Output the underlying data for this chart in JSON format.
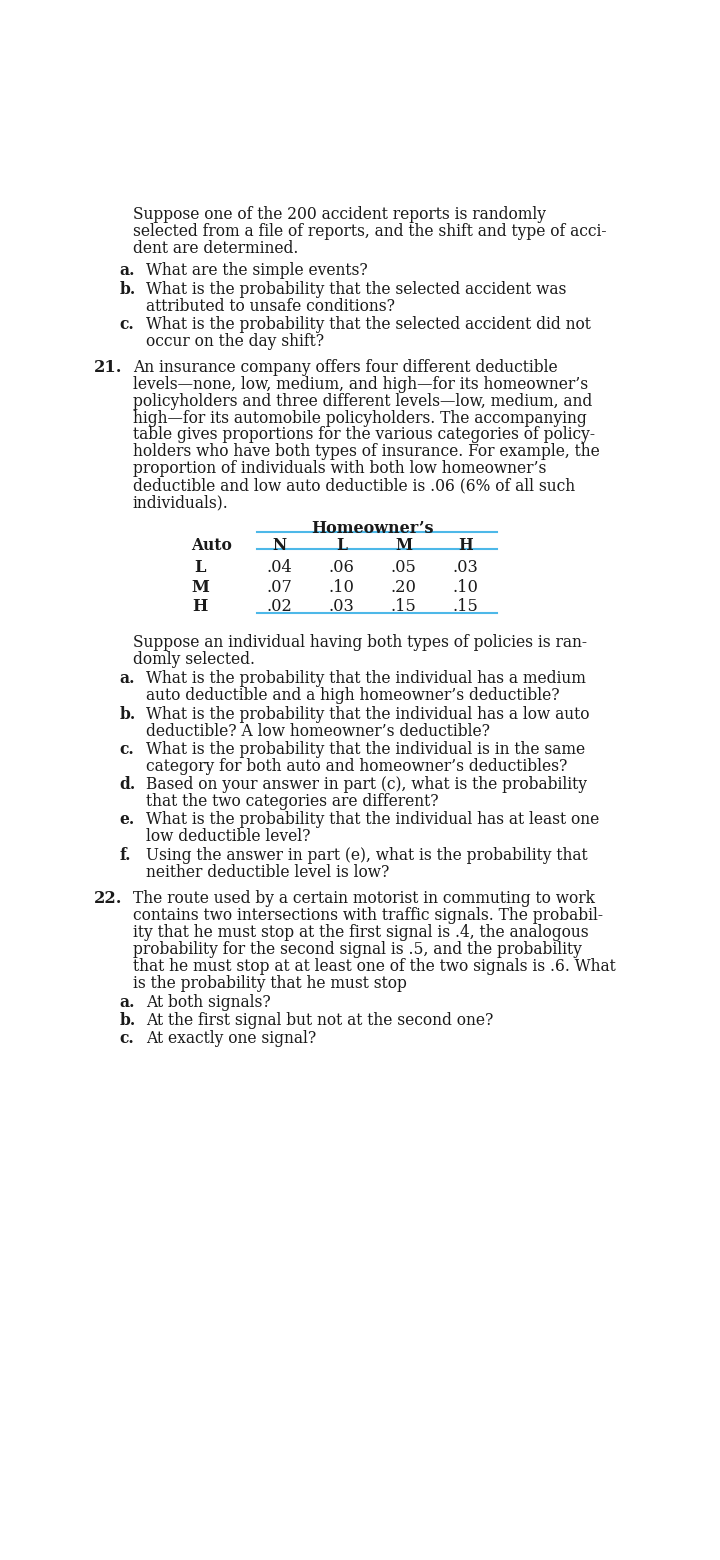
{
  "bg_color": "#ffffff",
  "text_color": "#1a1a1a",
  "line_color": "#4db8e8",
  "font_size_body": 11.2,
  "prev_para_lines": [
    "Suppose one of the 200 accident reports is randomly",
    "selected from a file of reports, and the shift and type of acci-",
    "dent are determined."
  ],
  "prev_items": [
    [
      "a.",
      "What are the simple events?"
    ],
    [
      "b.",
      "What is the probability that the selected accident was\n      attributed to unsafe conditions?"
    ],
    [
      "c.",
      "What is the probability that the selected accident did not\n      occur on the day shift?"
    ]
  ],
  "num21": "21.",
  "intro21_lines": [
    "An insurance company offers four different deductible",
    "levels—none, low, medium, and high—for its homeowner’s",
    "policyholders and three different levels—low, medium, and",
    "high—for its automobile policyholders. The accompanying",
    "table gives proportions for the various categories of policy-",
    "holders who have both types of insurance. For example, the",
    "proportion of individuals with both low homeowner’s",
    "deductible and low auto deductible is .06 (6% of all such",
    "individuals)."
  ],
  "table_header": "Homeowner’s",
  "table_col_headers": [
    "Auto",
    "N",
    "L",
    "M",
    "H"
  ],
  "table_rows": [
    [
      "L",
      ".04",
      ".06",
      ".05",
      ".03"
    ],
    [
      "M",
      ".07",
      ".10",
      ".20",
      ".10"
    ],
    [
      "H",
      ".02",
      ".03",
      ".15",
      ".15"
    ]
  ],
  "bridge21_lines": [
    "Suppose an individual having both types of policies is ran-",
    "domly selected."
  ],
  "items21": [
    [
      "a.",
      "What is the probability that the individual has a medium\n      auto deductible and a high homeowner’s deductible?"
    ],
    [
      "b.",
      "What is the probability that the individual has a low auto\n      deductible? A low homeowner’s deductible?"
    ],
    [
      "c.",
      "What is the probability that the individual is in the same\n      category for both auto and homeowner’s deductibles?"
    ],
    [
      "d.",
      "Based on your answer in part (c), what is the probability\n      that the two categories are different?"
    ],
    [
      "e.",
      "What is the probability that the individual has at least one\n      low deductible level?"
    ],
    [
      "f.",
      "Using the answer in part (e), what is the probability that\n      neither deductible level is low?"
    ]
  ],
  "num22": "22.",
  "intro22_lines": [
    "The route used by a certain motorist in commuting to work",
    "contains two intersections with traffic signals. The probabil-",
    "ity that he must stop at the first signal is .4, the analogous",
    "probability for the second signal is .5, and the probability",
    "that he must stop at at least one of the two signals is .6. What",
    "is the probability that he must stop"
  ],
  "items22": [
    [
      "a.",
      "At both signals?"
    ],
    [
      "b.",
      "At the first signal but not at the second one?"
    ],
    [
      "c.",
      "At exactly one signal?"
    ]
  ]
}
